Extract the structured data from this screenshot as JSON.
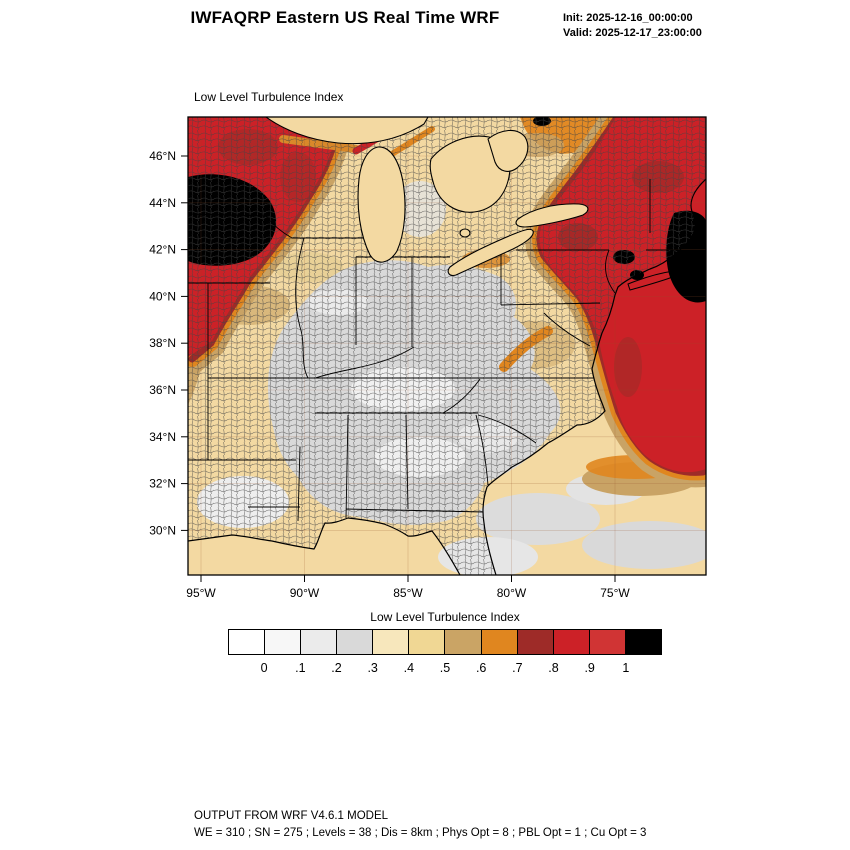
{
  "header": {
    "title": "IWFAQRP Eastern US Real Time WRF",
    "init": "Init: 2025-12-16_00:00:00",
    "valid": "Valid: 2025-12-17_23:00:00"
  },
  "map": {
    "title": "Low Level Turbulence Index",
    "lat_ticks": [
      "46°N",
      "44°N",
      "42°N",
      "40°N",
      "38°N",
      "36°N",
      "34°N",
      "32°N",
      "30°N"
    ],
    "lon_ticks": [
      "95°W",
      "90°W",
      "85°W",
      "80°W",
      "75°W"
    ]
  },
  "colorbar": {
    "title": "Low Level Turbulence Index",
    "labels": [
      "0",
      ".1",
      ".2",
      ".3",
      ".4",
      ".5",
      ".6",
      ".7",
      ".8",
      ".9",
      "1"
    ],
    "box_colors": [
      "#ffffff",
      "#f7f7f7",
      "#ebebeb",
      "#d9d9d9",
      "#f7e7bc",
      "#f0d794",
      "#caa465",
      "#e0861f",
      "#9e2b28",
      "#cc2127",
      "#d03434",
      "#000000"
    ]
  },
  "footer": {
    "line1": "OUTPUT FROM WRF V4.6.1 MODEL",
    "line2": "WE = 310 ; SN = 275 ; Levels = 38 ; Dis = 8km ; Phys Opt = 8 ; PBL Opt = 1 ; Cu Opt = 3"
  },
  "chart_data": {
    "type": "heatmap",
    "title": "Low Level Turbulence Index",
    "model_header": "IWFAQRP Eastern US Real Time WRF",
    "init_time": "2025-12-16_00:00:00",
    "valid_time": "2025-12-17_23:00:00",
    "x_ticks": [
      "95°W",
      "90°W",
      "85°W",
      "80°W",
      "75°W"
    ],
    "y_ticks": [
      "46°N",
      "44°N",
      "42°N",
      "40°N",
      "38°N",
      "36°N",
      "34°N",
      "32°N",
      "30°N"
    ],
    "colorbar_levels": [
      0,
      0.1,
      0.2,
      0.3,
      0.4,
      0.5,
      0.6,
      0.7,
      0.8,
      0.9,
      1
    ],
    "colorbar_colors": [
      "#ffffff",
      "#f7f7f7",
      "#ebebeb",
      "#d9d9d9",
      "#f7e7bc",
      "#f0d794",
      "#caa465",
      "#e0861f",
      "#9e2b28",
      "#cc2127",
      "#d03434",
      "#000000"
    ],
    "legend_position": "bottom",
    "regions": [
      {
        "area": "Minnesota / Iowa / western Wisconsin (upper Midwest)",
        "turbulence_index": "0.8-1.0 red with black core > 1"
      },
      {
        "area": "Upstate New York, New England and western Atlantic / Gulf of Maine",
        "turbulence_index": "0.8-1.0 red with black cores > 1"
      },
      {
        "area": "Ohio Valley, Tennessee Valley, Deep South interior",
        "turbulence_index": "0.0-0.3 (white/gray counties)"
      },
      {
        "area": "Great Lakes, Gulf of Mexico and South Atlantic coastal waters",
        "turbulence_index": "0.3-0.5 (tan)"
      },
      {
        "area": "Rims around high-turbulence regions (WI/IL edge, PA, NJ offshore, NC offshore)",
        "turbulence_index": "0.5-0.8 (khaki / orange / dark red bands)"
      },
      {
        "area": "Central Virginia band",
        "turbulence_index": "0.5-0.7"
      }
    ]
  }
}
